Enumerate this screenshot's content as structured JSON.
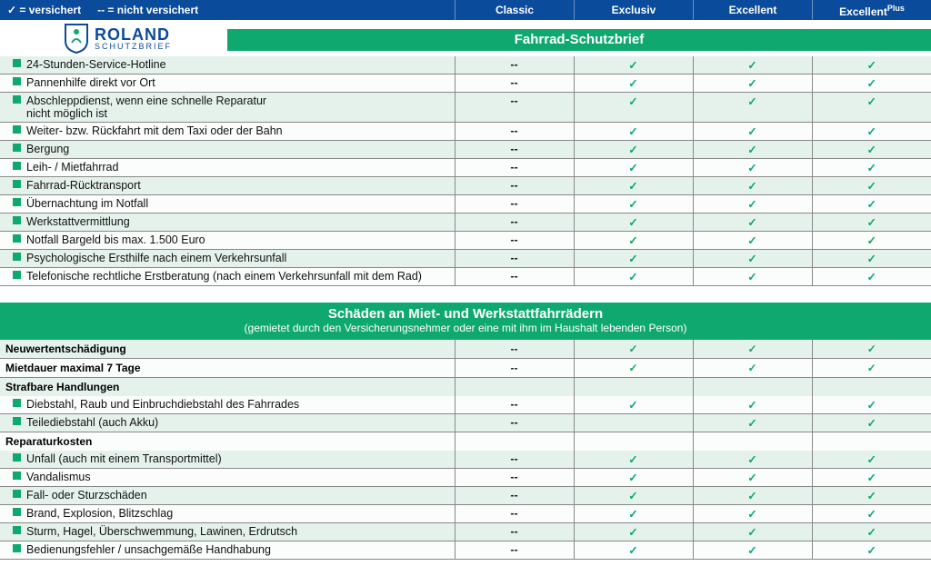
{
  "colors": {
    "blue": "#0a4b9c",
    "green": "#0fa96f",
    "rowAlt": "#e5f2ec",
    "rowBase": "#fafdfb",
    "border": "#888888"
  },
  "legend": {
    "insured": "✓ = versichert",
    "notInsured": "-- = nicht versichert"
  },
  "plans": [
    "Classic",
    "Exclusiv",
    "Excellent",
    "ExcellentPlus"
  ],
  "logo": {
    "line1": "ROLAND",
    "line2": "SCHUTZBRIEF"
  },
  "section1": {
    "title": "Fahrrad-Schutzbrief",
    "rows": [
      {
        "label": "24-Stunden-Service-Hotline",
        "v": [
          "--",
          "✓",
          "✓",
          "✓"
        ]
      },
      {
        "label": "Pannenhilfe direkt vor Ort",
        "v": [
          "--",
          "✓",
          "✓",
          "✓"
        ]
      },
      {
        "label": "Abschleppdienst, wenn eine schnelle Reparatur\nnicht möglich ist",
        "v": [
          "--",
          "✓",
          "✓",
          "✓"
        ]
      },
      {
        "label": "Weiter- bzw. Rückfahrt mit dem Taxi oder der Bahn",
        "v": [
          "--",
          "✓",
          "✓",
          "✓"
        ]
      },
      {
        "label": "Bergung",
        "v": [
          "--",
          "✓",
          "✓",
          "✓"
        ]
      },
      {
        "label": "Leih- / Mietfahrrad",
        "v": [
          "--",
          "✓",
          "✓",
          "✓"
        ]
      },
      {
        "label": "Fahrrad-Rücktransport",
        "v": [
          "--",
          "✓",
          "✓",
          "✓"
        ]
      },
      {
        "label": "Übernachtung im Notfall",
        "v": [
          "--",
          "✓",
          "✓",
          "✓"
        ]
      },
      {
        "label": "Werkstattvermittlung",
        "v": [
          "--",
          "✓",
          "✓",
          "✓"
        ]
      },
      {
        "label": "Notfall Bargeld bis max. 1.500 Euro",
        "v": [
          "--",
          "✓",
          "✓",
          "✓"
        ]
      },
      {
        "label": "Psychologische Ersthilfe nach einem Verkehrsunfall",
        "v": [
          "--",
          "✓",
          "✓",
          "✓"
        ]
      },
      {
        "label": "Telefonische rechtliche Erstberatung (nach einem Verkehrsunfall mit dem Rad)",
        "v": [
          "--",
          "✓",
          "✓",
          "✓"
        ]
      }
    ]
  },
  "section2": {
    "title": "Schäden an Miet- und Werkstattfahrrädern",
    "subtitle": "(gemietet durch den Versicherungsnehmer oder eine mit ihm im Haushalt lebenden Person)",
    "groups": [
      {
        "heading": "Neuwertentschädigung",
        "v": [
          "--",
          "✓",
          "✓",
          "✓"
        ],
        "rows": []
      },
      {
        "heading": "Mietdauer maximal 7 Tage",
        "v": [
          "--",
          "✓",
          "✓",
          "✓"
        ],
        "rows": []
      },
      {
        "heading": "Strafbare Handlungen",
        "rows": [
          {
            "label": "Diebstahl, Raub und Einbruchdiebstahl des Fahrrades",
            "v": [
              "--",
              "✓",
              "✓",
              "✓"
            ]
          },
          {
            "label": "Teilediebstahl (auch Akku)",
            "v": [
              "--",
              "",
              "✓",
              "✓"
            ]
          }
        ]
      },
      {
        "heading": "Reparaturkosten",
        "rows": [
          {
            "label": "Unfall (auch mit einem Transportmittel)",
            "v": [
              "--",
              "✓",
              "✓",
              "✓"
            ]
          },
          {
            "label": "Vandalismus",
            "v": [
              "--",
              "✓",
              "✓",
              "✓"
            ]
          },
          {
            "label": "Fall- oder Sturzschäden",
            "v": [
              "--",
              "✓",
              "✓",
              "✓"
            ]
          },
          {
            "label": "Brand, Explosion, Blitzschlag",
            "v": [
              "--",
              "✓",
              "✓",
              "✓"
            ]
          },
          {
            "label": "Sturm, Hagel, Überschwemmung, Lawinen, Erdrutsch",
            "v": [
              "--",
              "✓",
              "✓",
              "✓"
            ]
          },
          {
            "label": "Bedienungsfehler / unsachgemäße Handhabung",
            "v": [
              "--",
              "✓",
              "✓",
              "✓"
            ]
          }
        ]
      }
    ]
  }
}
